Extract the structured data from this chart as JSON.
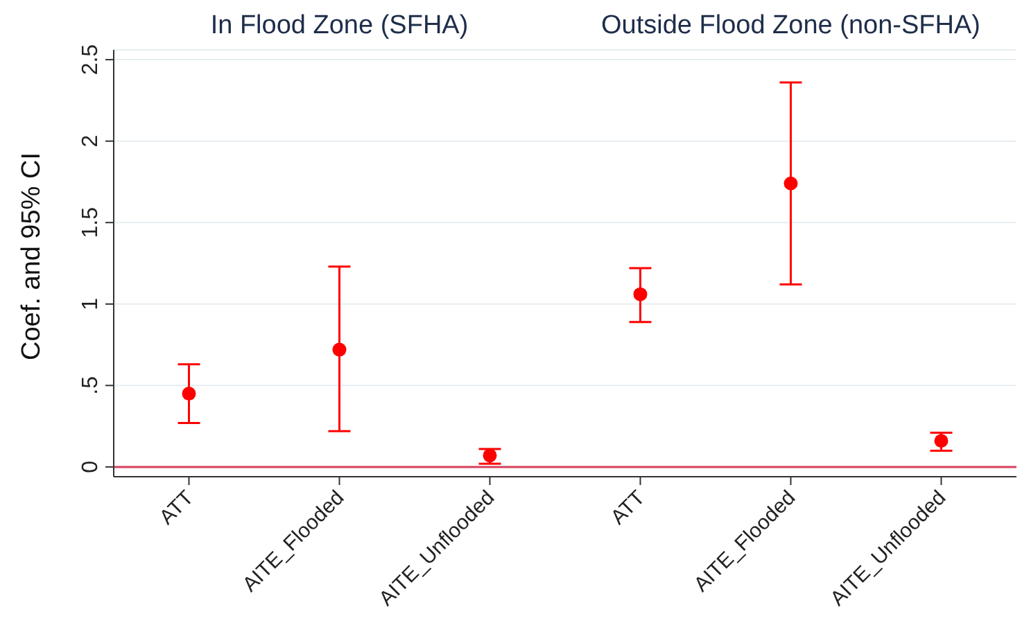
{
  "chart_data": {
    "type": "scatter",
    "ylabel": "Coef. and 95% CI",
    "annotations": [
      "In Flood Zone (SFHA)",
      "Outside Flood Zone (non-SFHA)"
    ],
    "categories": [
      "ATT",
      "AITE_Flooded",
      "AITE_Unflooded",
      "ATT",
      "AITE_Flooded",
      "AITE_Unflooded"
    ],
    "series": [
      {
        "color": "#ff0000",
        "values": [
          0.45,
          0.72,
          0.07,
          1.06,
          1.74,
          0.16
        ],
        "errors": [
          [
            0.27,
            0.63
          ],
          [
            0.22,
            1.23
          ],
          [
            0.02,
            0.11
          ],
          [
            0.89,
            1.22
          ],
          [
            1.12,
            2.36
          ],
          [
            0.1,
            0.21
          ]
        ]
      }
    ],
    "ylim": [
      -0.06,
      2.56
    ],
    "yticks": [
      {
        "value": 0,
        "label": "0"
      },
      {
        "value": 0.5,
        "label": ".5"
      },
      {
        "value": 1,
        "label": "1"
      },
      {
        "value": 1.5,
        "label": "1.5"
      },
      {
        "value": 2,
        "label": "2"
      },
      {
        "value": 2.5,
        "label": "2.5"
      }
    ],
    "grid": "y",
    "marker": "circle",
    "ref_lines": [
      {
        "axis": "y",
        "value": 0,
        "color": "#d6405e"
      }
    ]
  }
}
